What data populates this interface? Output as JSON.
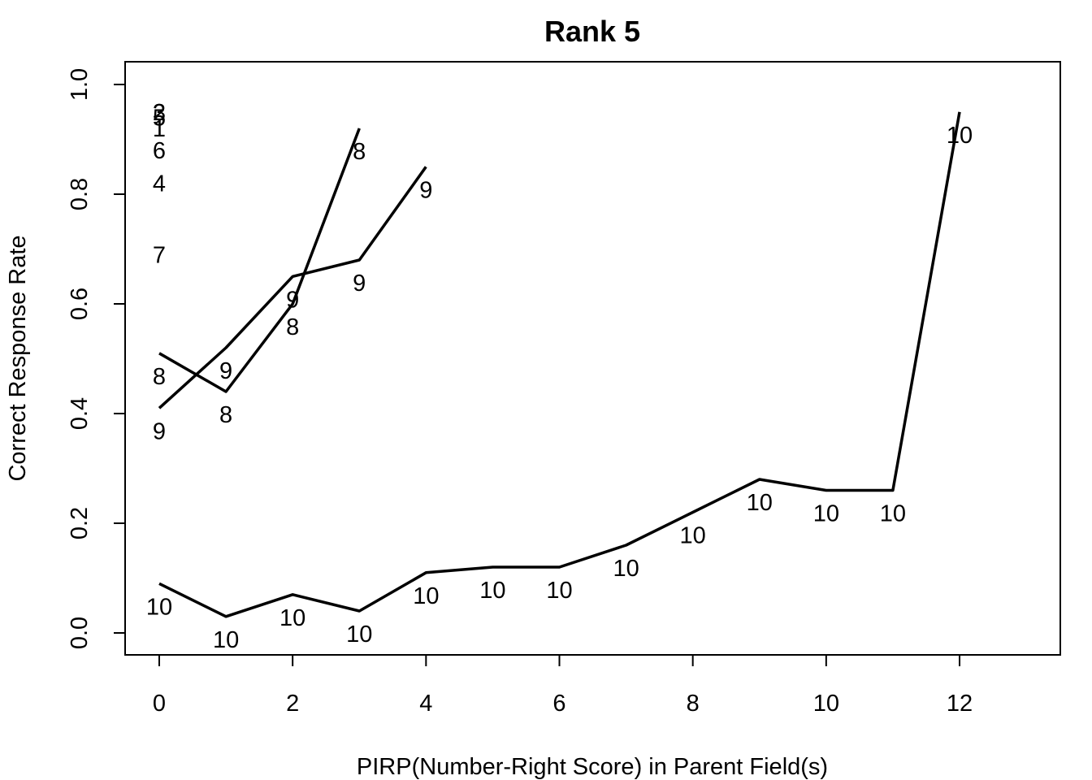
{
  "chart_data": {
    "type": "line",
    "title": "Rank 5",
    "xlabel": "PIRP(Number-Right Score) in Parent Field(s)",
    "ylabel": "Correct Response Rate",
    "xlim": [
      -0.5,
      13.5
    ],
    "ylim": [
      -0.04,
      1.04
    ],
    "x_ticks": [
      0,
      2,
      4,
      6,
      8,
      10,
      12
    ],
    "y_ticks": [
      0.0,
      0.2,
      0.4,
      0.6,
      0.8,
      1.0
    ],
    "x_tick_labels": [
      "0",
      "2",
      "4",
      "6",
      "8",
      "10",
      "12"
    ],
    "y_tick_labels": [
      "0.0",
      "0.2",
      "0.4",
      "0.6",
      "0.8",
      "1.0"
    ],
    "grid": false,
    "series": [
      {
        "label": "8",
        "x": [
          0,
          1,
          2,
          3
        ],
        "y": [
          0.51,
          0.44,
          0.6,
          0.92
        ]
      },
      {
        "label": "9",
        "x": [
          0,
          1,
          2,
          3,
          4
        ],
        "y": [
          0.41,
          0.52,
          0.65,
          0.68,
          0.85
        ]
      },
      {
        "label": "10",
        "x": [
          0,
          1,
          2,
          3,
          4,
          5,
          6,
          7,
          8,
          9,
          10,
          11,
          12
        ],
        "y": [
          0.09,
          0.03,
          0.07,
          0.04,
          0.11,
          0.12,
          0.12,
          0.16,
          0.22,
          0.28,
          0.26,
          0.26,
          0.95
        ]
      }
    ],
    "single_points": [
      {
        "label": "2",
        "x": 0,
        "y": 0.95
      },
      {
        "label": "3",
        "x": 0,
        "y": 0.95
      },
      {
        "label": "5",
        "x": 0,
        "y": 0.94
      },
      {
        "label": "1",
        "x": 0,
        "y": 0.92
      },
      {
        "label": "6",
        "x": 0,
        "y": 0.88
      },
      {
        "label": "4",
        "x": 0,
        "y": 0.82
      },
      {
        "label": "7",
        "x": 0,
        "y": 0.69
      }
    ]
  }
}
